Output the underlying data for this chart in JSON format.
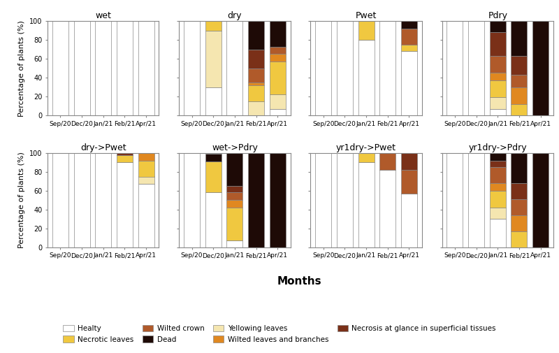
{
  "categories": [
    "Sep/20",
    "Dec/20",
    "Jan/21",
    "Feb/21",
    "Apr/21"
  ],
  "colors": {
    "Healty": "#FFFFFF",
    "Yellowing leaves": "#F5E6B0",
    "Necrotic leaves": "#F0C840",
    "Wilted leaves and branches": "#E08820",
    "Wilted crown": "#B05A2A",
    "Necrosis at glance in superficial tissues": "#7A3018",
    "Dead": "#1E0A06"
  },
  "subplots": {
    "wet": [
      [
        100,
        0,
        0,
        0,
        0,
        0,
        0
      ],
      [
        100,
        0,
        0,
        0,
        0,
        0,
        0
      ],
      [
        100,
        0,
        0,
        0,
        0,
        0,
        0
      ],
      [
        100,
        0,
        0,
        0,
        0,
        0,
        0
      ],
      [
        100,
        0,
        0,
        0,
        0,
        0,
        0
      ]
    ],
    "dry": [
      [
        100,
        0,
        0,
        0,
        0,
        0,
        0
      ],
      [
        30,
        60,
        10,
        0,
        0,
        0,
        0
      ],
      [
        100,
        0,
        0,
        0,
        0,
        0,
        0
      ],
      [
        0,
        15,
        17,
        3,
        15,
        20,
        30
      ],
      [
        7,
        15,
        35,
        8,
        8,
        0,
        27
      ]
    ],
    "Pwet": [
      [
        100,
        0,
        0,
        0,
        0,
        0,
        0
      ],
      [
        100,
        0,
        0,
        0,
        0,
        0,
        0
      ],
      [
        80,
        0,
        20,
        0,
        0,
        0,
        0
      ],
      [
        100,
        0,
        0,
        0,
        0,
        0,
        0
      ],
      [
        68,
        0,
        7,
        0,
        17,
        0,
        8
      ]
    ],
    "Pdry": [
      [
        100,
        0,
        0,
        0,
        0,
        0,
        0
      ],
      [
        100,
        0,
        0,
        0,
        0,
        0,
        0
      ],
      [
        7,
        12,
        18,
        8,
        18,
        25,
        12
      ],
      [
        0,
        0,
        12,
        18,
        13,
        20,
        37
      ],
      [
        0,
        0,
        0,
        0,
        0,
        0,
        100
      ]
    ],
    "dry->Pwet": [
      [
        100,
        0,
        0,
        0,
        0,
        0,
        0
      ],
      [
        100,
        0,
        0,
        0,
        0,
        0,
        0
      ],
      [
        100,
        0,
        0,
        0,
        0,
        0,
        0
      ],
      [
        90,
        0,
        8,
        0,
        0,
        2,
        0
      ],
      [
        67,
        8,
        17,
        8,
        0,
        0,
        0
      ]
    ],
    "wet->Pdry": [
      [
        100,
        0,
        0,
        0,
        0,
        0,
        0
      ],
      [
        58,
        0,
        33,
        0,
        0,
        0,
        8
      ],
      [
        7,
        0,
        35,
        8,
        8,
        7,
        35
      ],
      [
        0,
        0,
        0,
        0,
        0,
        0,
        100
      ],
      [
        0,
        0,
        0,
        0,
        0,
        0,
        100
      ]
    ],
    "yr1dry->Pwet": [
      [
        100,
        0,
        0,
        0,
        0,
        0,
        0
      ],
      [
        100,
        0,
        0,
        0,
        0,
        0,
        0
      ],
      [
        90,
        0,
        10,
        0,
        0,
        0,
        0
      ],
      [
        82,
        0,
        0,
        0,
        18,
        0,
        0
      ],
      [
        57,
        0,
        0,
        0,
        25,
        18,
        0
      ]
    ],
    "yr1dry->Pdry": [
      [
        100,
        0,
        0,
        0,
        0,
        0,
        0
      ],
      [
        100,
        0,
        0,
        0,
        0,
        0,
        0
      ],
      [
        30,
        12,
        18,
        8,
        17,
        7,
        8
      ],
      [
        0,
        0,
        17,
        17,
        17,
        17,
        32
      ],
      [
        0,
        0,
        0,
        0,
        0,
        0,
        100
      ]
    ]
  },
  "subplot_order": [
    [
      "wet",
      "dry",
      "Pwet",
      "Pdry"
    ],
    [
      "dry->Pwet",
      "wet->Pdry",
      "yr1dry->Pwet",
      "yr1dry->Pdry"
    ]
  ],
  "legend_labels": [
    "Healty",
    "Yellowing leaves",
    "Necrotic leaves",
    "Wilted leaves and branches",
    "Wilted crown",
    "Necrosis at glance in superficial tissues",
    "Dead"
  ],
  "ylabel": "Percentage of plants (%)",
  "xlabel": "Months",
  "ylim": [
    0,
    100
  ]
}
